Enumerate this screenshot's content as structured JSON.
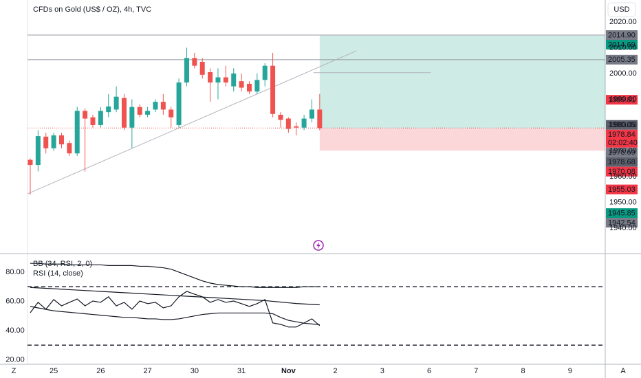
{
  "ui": {
    "currency": "USD",
    "left_button": "Z",
    "right_button": "A"
  },
  "chart_data": [
    {
      "type": "candlestick",
      "title": "CFDs on Gold (US$ / OZ), 4h, TVC",
      "up_color": "#26a69a",
      "down_color": "#ef5350",
      "open": [
        1966.5,
        1964.5,
        1975.5,
        1971,
        1976,
        1973,
        1969,
        1985.5,
        1983,
        1980,
        1985,
        1986,
        1990.5,
        1979,
        1987,
        1984,
        1986,
        1989,
        1986,
        1980,
        1996.5,
        2006,
        2004.5,
        2000.5,
        1996.5,
        1998.5,
        1995,
        1997,
        1996,
        1993,
        1997.5,
        2003,
        1984,
        1982.5,
        1979.5,
        1979,
        1982.5,
        1986
      ],
      "high": [
        1967,
        1978,
        1977,
        1977,
        1977,
        1974,
        1987,
        1986.5,
        1984,
        1987,
        1992,
        1995,
        1992,
        1990,
        1988,
        1987,
        1990,
        1992,
        1987,
        1998,
        2010,
        2008,
        2006,
        2002,
        2002,
        2003,
        2002,
        2000,
        1997,
        2000,
        2004,
        2008,
        1985,
        1983,
        1981,
        1984,
        1990,
        1992
      ],
      "low": [
        1953,
        1962,
        1969,
        1970,
        1971,
        1968,
        1968,
        1962,
        1979,
        1979,
        1983,
        1985,
        1978,
        1971,
        1983,
        1983,
        1985,
        1984,
        1979,
        1979,
        1995,
        2002,
        1998,
        1989,
        1990,
        1995,
        1993,
        1993,
        1992,
        1992,
        1995,
        1983,
        1979,
        1977,
        1976,
        1978,
        1981,
        1978
      ],
      "close": [
        1964.5,
        1975.7,
        1971,
        1976,
        1972.5,
        1969,
        1985.5,
        1982.5,
        1980,
        1985.5,
        1987.2,
        1991,
        1979,
        1987,
        1984,
        1985.5,
        1989,
        1986,
        1983,
        1996.5,
        2006,
        2003,
        1999.5,
        1996.5,
        1998.5,
        1996.5,
        2000,
        1994.5,
        1993,
        1997.5,
        2003,
        1984.3,
        1982,
        1978.5,
        1979,
        1982.5,
        1986,
        1978.8
      ],
      "xlim": [
        -0.35,
        73.5
      ],
      "ylim": [
        1930.4,
        2028.5
      ],
      "xticks": [
        {
          "value": 3,
          "label": "25"
        },
        {
          "value": 9,
          "label": "26"
        },
        {
          "value": 15,
          "label": "27"
        },
        {
          "value": 21,
          "label": "30"
        },
        {
          "value": 27,
          "label": "31"
        },
        {
          "value": 33,
          "label": "Nov"
        },
        {
          "value": 39,
          "label": "2"
        },
        {
          "value": 45,
          "label": "3"
        },
        {
          "value": 51,
          "label": "6"
        },
        {
          "value": 57,
          "label": "7"
        },
        {
          "value": 63,
          "label": "8"
        },
        {
          "value": 69,
          "label": "9"
        }
      ],
      "yticks": [
        {
          "value": 1940,
          "label": "1940.00"
        },
        {
          "value": 1950,
          "label": "1950.00"
        },
        {
          "value": 1960,
          "label": "1960.00"
        },
        {
          "value": 1970,
          "label": "1970.00"
        },
        {
          "value": 1980,
          "label": "1980.00"
        },
        {
          "value": 1990,
          "label": "1990.00"
        },
        {
          "value": 2000,
          "label": "2000.00"
        },
        {
          "value": 2010,
          "label": "2010.00"
        },
        {
          "value": 2020,
          "label": "2020.00"
        }
      ],
      "price_tags": [
        {
          "value": 2014.9,
          "label": "2014.90",
          "color": "#787b86"
        },
        {
          "value": 2014.69,
          "label": "2014.69",
          "color": "#089981"
        },
        {
          "value": 2005.35,
          "label": "2005.35",
          "color": "#787b86"
        },
        {
          "value": 1989.81,
          "label": "1989.81",
          "color": "#f23645"
        },
        {
          "value": 1980.05,
          "label": "1980.05",
          "color": "#5d606b"
        },
        {
          "value": 1978.84,
          "label": "1978.84",
          "color": "#f23645",
          "countdown": "02:02:40"
        },
        {
          "value": 1978.69,
          "label": "1978.69",
          "color": "#787b86"
        },
        {
          "value": 1978.68,
          "label": "1978.68",
          "color": "#5d606b"
        },
        {
          "value": 1970.08,
          "label": "1970.08",
          "color": "#f23645"
        },
        {
          "value": 1955.03,
          "label": "1955.03",
          "color": "#f23645"
        },
        {
          "value": 1945.85,
          "label": "1945.85",
          "color": "#089981"
        },
        {
          "value": 1942.54,
          "label": "1942.54",
          "color": "#787b86"
        }
      ],
      "levels": [
        2014.9,
        2005.35
      ],
      "last_price": 1978.84,
      "position": {
        "start": 37,
        "entry": 1978.69,
        "target": 2014.69,
        "stop": 1970.08
      },
      "lines": [
        {
          "x": [
            -0.35,
            41.7
          ],
          "y": [
            1953.3,
            2008.8
          ]
        },
        {
          "x": [
            36.2,
            51.2
          ],
          "y": [
            2000.3,
            2000.3
          ]
        }
      ]
    },
    {
      "type": "line",
      "xlim": [
        -0.35,
        73.5
      ],
      "ylim": [
        16.9,
        92.2
      ],
      "yticks": [
        {
          "value": 20,
          "label": "20.00"
        },
        {
          "value": 40,
          "label": "40.00"
        },
        {
          "value": 60,
          "label": "60.00"
        },
        {
          "value": 80,
          "label": "80.00"
        }
      ],
      "levels": [
        70,
        30
      ],
      "series": [
        {
          "name": "BB (34, RSI, 2, 0)",
          "color": "#131722",
          "upper": [
            86,
            86,
            85.5,
            85.5,
            85.5,
            85,
            85,
            85,
            85,
            85,
            84.5,
            84.5,
            84.5,
            84.5,
            84,
            84,
            83.5,
            83,
            82,
            80,
            78,
            76,
            74,
            72.5,
            71.5,
            71,
            70.5,
            70,
            70,
            69.5,
            69.5,
            69.5,
            69.5,
            69.5,
            69.5,
            70,
            70,
            70
          ],
          "basis": [
            69.5,
            69.2,
            68.9,
            68.6,
            68.3,
            68,
            67.7,
            67.4,
            67.1,
            66.8,
            66.5,
            66.2,
            65.9,
            65.6,
            65.3,
            65,
            64.7,
            64.4,
            64.1,
            63.8,
            63.5,
            63.2,
            62.9,
            62.6,
            62.3,
            62,
            61.7,
            61.4,
            61.1,
            60.8,
            60.5,
            60,
            59.5,
            59,
            58.5,
            58.2,
            57.9,
            57.6
          ],
          "lower": [
            56.5,
            55.5,
            54.5,
            53.5,
            53,
            52.5,
            52,
            51.5,
            51,
            50.5,
            50,
            49.5,
            49,
            49,
            48.5,
            48,
            48,
            47.5,
            47.5,
            48,
            49,
            50,
            51,
            51.5,
            52,
            52,
            52,
            52,
            52,
            52,
            52,
            51.5,
            49,
            47,
            46,
            45,
            44.5,
            44
          ]
        },
        {
          "name": "RSI (14, close)",
          "color": "#131722",
          "values": [
            52.2,
            59.3,
            54.6,
            61.2,
            56.9,
            59.3,
            61.6,
            56.9,
            60.2,
            59.3,
            63.1,
            56.9,
            59.3,
            54.6,
            60.2,
            58.4,
            59.3,
            55.5,
            56.9,
            63.1,
            66.8,
            64.9,
            63.1,
            59.3,
            61.2,
            59.3,
            60.2,
            58.4,
            56.5,
            58.4,
            61.2,
            45.2,
            44.2,
            42.4,
            42.4,
            45.2,
            48,
            43.3
          ]
        }
      ]
    }
  ]
}
